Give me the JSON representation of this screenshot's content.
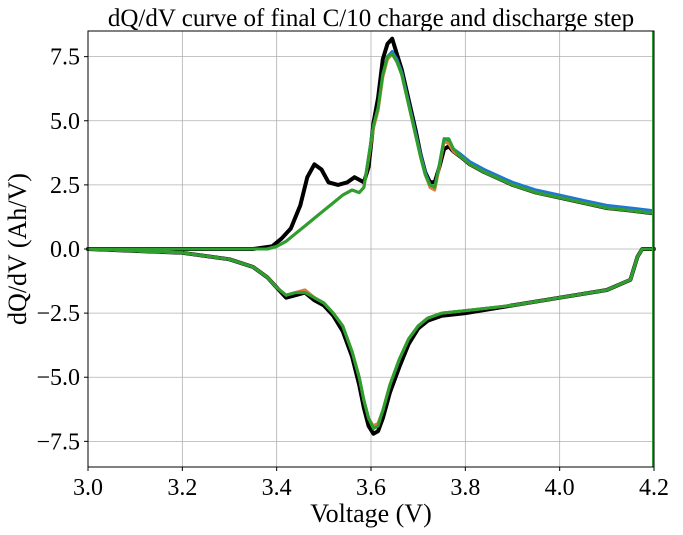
{
  "chart_data": {
    "type": "line",
    "title": "dQ/dV curve of final C/10 charge and discharge step",
    "xlabel": "Voltage (V)",
    "ylabel": "dQ/dV (Ah/V)",
    "xlim": [
      3.0,
      4.2
    ],
    "ylim": [
      -8.5,
      8.5
    ],
    "xticks": [
      3.0,
      3.2,
      3.4,
      3.6,
      3.8,
      4.0,
      4.2
    ],
    "xtick_labels": [
      "3.0",
      "3.2",
      "3.4",
      "3.6",
      "3.8",
      "4.0",
      "4.2"
    ],
    "yticks": [
      -7.5,
      -5.0,
      -2.5,
      0.0,
      2.5,
      5.0,
      7.5
    ],
    "ytick_labels": [
      "−7.5",
      "−5.0",
      "−2.5",
      "0.0",
      "2.5",
      "5.0",
      "7.5"
    ],
    "grid": true,
    "series": [
      {
        "color": "#000000",
        "charge": {
          "x": [
            3.0,
            3.35,
            3.39,
            3.41,
            3.43,
            3.45,
            3.465,
            3.48,
            3.495,
            3.51,
            3.53,
            3.55,
            3.565,
            3.575,
            3.585,
            3.595,
            3.605,
            3.615,
            3.625,
            3.635,
            3.645,
            3.655,
            3.665,
            3.675,
            3.685,
            3.695,
            3.705,
            3.715,
            3.725,
            3.735,
            3.745,
            3.755,
            3.765,
            3.775,
            3.79,
            3.81,
            3.84,
            3.9,
            3.95,
            4.0,
            4.05,
            4.1,
            4.15,
            4.195
          ],
          "y": [
            0.0,
            0.0,
            0.1,
            0.4,
            0.8,
            1.7,
            2.8,
            3.3,
            3.1,
            2.6,
            2.5,
            2.6,
            2.8,
            2.7,
            2.6,
            3.2,
            4.9,
            5.9,
            7.4,
            8.0,
            8.2,
            7.6,
            7.0,
            6.2,
            5.4,
            4.6,
            3.7,
            3.0,
            2.6,
            2.6,
            3.2,
            3.9,
            4.0,
            3.8,
            3.6,
            3.3,
            3.0,
            2.5,
            2.2,
            2.0,
            1.8,
            1.6,
            1.5,
            1.4
          ]
        },
        "discharge": {
          "x": [
            3.0,
            3.2,
            3.3,
            3.35,
            3.38,
            3.4,
            3.42,
            3.44,
            3.46,
            3.48,
            3.5,
            3.52,
            3.54,
            3.56,
            3.575,
            3.585,
            3.595,
            3.605,
            3.615,
            3.625,
            3.64,
            3.66,
            3.68,
            3.7,
            3.72,
            3.75,
            3.8,
            3.9,
            4.0,
            4.1,
            4.15,
            4.165,
            4.175,
            4.2
          ],
          "y": [
            0.0,
            -0.15,
            -0.4,
            -0.7,
            -1.1,
            -1.5,
            -1.9,
            -1.8,
            -1.7,
            -2.0,
            -2.2,
            -2.6,
            -3.2,
            -4.2,
            -5.3,
            -6.2,
            -6.9,
            -7.2,
            -7.1,
            -6.6,
            -5.6,
            -4.6,
            -3.7,
            -3.1,
            -2.8,
            -2.6,
            -2.5,
            -2.2,
            -1.9,
            -1.6,
            -1.2,
            -0.3,
            0.0,
            0.0
          ]
        }
      },
      {
        "color": "#1f77d4",
        "charge": {
          "x": [
            3.0,
            3.38,
            3.4,
            3.42,
            3.44,
            3.46,
            3.48,
            3.5,
            3.52,
            3.54,
            3.56,
            3.575,
            3.585,
            3.595,
            3.605,
            3.615,
            3.625,
            3.635,
            3.645,
            3.655,
            3.665,
            3.675,
            3.685,
            3.695,
            3.705,
            3.715,
            3.725,
            3.735,
            3.745,
            3.755,
            3.765,
            3.775,
            3.79,
            3.81,
            3.84,
            3.9,
            3.95,
            4.0,
            4.05,
            4.1,
            4.15,
            4.195
          ],
          "y": [
            0.0,
            0.0,
            0.1,
            0.3,
            0.6,
            0.9,
            1.2,
            1.5,
            1.8,
            2.1,
            2.3,
            2.2,
            2.4,
            3.6,
            4.8,
            5.5,
            6.8,
            7.5,
            7.7,
            7.4,
            6.9,
            6.1,
            5.3,
            4.5,
            3.7,
            3.0,
            2.5,
            2.4,
            3.3,
            4.3,
            4.2,
            3.9,
            3.7,
            3.4,
            3.1,
            2.6,
            2.3,
            2.1,
            1.9,
            1.7,
            1.6,
            1.5
          ]
        },
        "discharge": {
          "x": [
            3.0,
            3.2,
            3.3,
            3.35,
            3.38,
            3.4,
            3.42,
            3.44,
            3.46,
            3.48,
            3.5,
            3.52,
            3.54,
            3.56,
            3.575,
            3.585,
            3.595,
            3.605,
            3.615,
            3.625,
            3.64,
            3.66,
            3.68,
            3.7,
            3.72,
            3.75,
            3.8,
            3.9,
            4.0,
            4.1,
            4.15,
            4.165,
            4.175,
            4.2
          ],
          "y": [
            0.0,
            -0.15,
            -0.4,
            -0.7,
            -1.1,
            -1.5,
            -1.8,
            -1.7,
            -1.6,
            -1.9,
            -2.1,
            -2.5,
            -3.0,
            -4.0,
            -5.0,
            -5.9,
            -6.6,
            -6.9,
            -6.8,
            -6.3,
            -5.3,
            -4.3,
            -3.5,
            -3.0,
            -2.7,
            -2.5,
            -2.4,
            -2.2,
            -1.9,
            -1.6,
            -1.2,
            -0.3,
            0.0,
            0.0
          ]
        }
      },
      {
        "color": "#e07b39",
        "charge": {
          "x": [
            3.0,
            3.38,
            3.4,
            3.42,
            3.44,
            3.46,
            3.48,
            3.5,
            3.52,
            3.54,
            3.56,
            3.575,
            3.585,
            3.595,
            3.605,
            3.615,
            3.625,
            3.635,
            3.645,
            3.655,
            3.665,
            3.675,
            3.685,
            3.695,
            3.705,
            3.715,
            3.725,
            3.735,
            3.745,
            3.755,
            3.765,
            3.775,
            3.79,
            3.81,
            3.84,
            3.9,
            3.95,
            4.0,
            4.05,
            4.1,
            4.15,
            4.195
          ],
          "y": [
            0.0,
            0.0,
            0.1,
            0.3,
            0.6,
            0.9,
            1.2,
            1.5,
            1.8,
            2.1,
            2.3,
            2.2,
            2.4,
            3.5,
            4.7,
            5.4,
            6.7,
            7.4,
            7.6,
            7.3,
            6.8,
            6.0,
            5.2,
            4.4,
            3.6,
            2.9,
            2.4,
            2.3,
            3.2,
            4.2,
            4.1,
            3.8,
            3.6,
            3.3,
            3.0,
            2.5,
            2.2,
            2.0,
            1.8,
            1.6,
            1.5,
            1.4
          ]
        },
        "discharge": {
          "x": [
            3.0,
            3.2,
            3.3,
            3.35,
            3.38,
            3.4,
            3.42,
            3.44,
            3.46,
            3.48,
            3.5,
            3.52,
            3.54,
            3.56,
            3.575,
            3.585,
            3.595,
            3.605,
            3.615,
            3.625,
            3.64,
            3.66,
            3.68,
            3.7,
            3.72,
            3.75,
            3.8,
            3.9,
            4.0,
            4.1,
            4.15,
            4.165,
            4.175,
            4.2
          ],
          "y": [
            0.0,
            -0.15,
            -0.4,
            -0.7,
            -1.1,
            -1.5,
            -1.8,
            -1.7,
            -1.6,
            -1.9,
            -2.1,
            -2.5,
            -3.0,
            -4.0,
            -5.0,
            -5.9,
            -6.6,
            -6.9,
            -6.8,
            -6.3,
            -5.3,
            -4.3,
            -3.5,
            -3.0,
            -2.7,
            -2.5,
            -2.4,
            -2.2,
            -1.9,
            -1.6,
            -1.2,
            -0.3,
            0.0,
            0.0
          ]
        }
      },
      {
        "color": "#2ca02c",
        "charge": {
          "x": [
            3.0,
            3.38,
            3.4,
            3.42,
            3.44,
            3.46,
            3.48,
            3.5,
            3.52,
            3.54,
            3.56,
            3.575,
            3.585,
            3.595,
            3.605,
            3.615,
            3.625,
            3.635,
            3.645,
            3.655,
            3.665,
            3.675,
            3.685,
            3.695,
            3.705,
            3.715,
            3.725,
            3.735,
            3.745,
            3.755,
            3.765,
            3.775,
            3.79,
            3.81,
            3.84,
            3.9,
            3.95,
            4.0,
            4.05,
            4.1,
            4.15,
            4.195
          ],
          "y": [
            0.0,
            0.0,
            0.1,
            0.3,
            0.6,
            0.9,
            1.2,
            1.5,
            1.8,
            2.1,
            2.3,
            2.2,
            2.4,
            3.6,
            4.8,
            5.5,
            6.8,
            7.5,
            7.6,
            7.3,
            6.8,
            6.0,
            5.2,
            4.4,
            3.6,
            2.9,
            2.5,
            2.4,
            3.3,
            4.3,
            4.3,
            3.9,
            3.6,
            3.3,
            3.0,
            2.5,
            2.2,
            2.0,
            1.8,
            1.6,
            1.5,
            1.4
          ]
        },
        "discharge": {
          "x": [
            3.0,
            3.2,
            3.3,
            3.35,
            3.38,
            3.4,
            3.42,
            3.44,
            3.46,
            3.48,
            3.5,
            3.52,
            3.54,
            3.56,
            3.575,
            3.585,
            3.595,
            3.605,
            3.615,
            3.625,
            3.64,
            3.66,
            3.68,
            3.7,
            3.72,
            3.75,
            3.8,
            3.9,
            4.0,
            4.1,
            4.15,
            4.165,
            4.175,
            4.2
          ],
          "y": [
            0.0,
            -0.15,
            -0.4,
            -0.7,
            -1.1,
            -1.5,
            -1.8,
            -1.7,
            -1.7,
            -1.9,
            -2.1,
            -2.5,
            -3.0,
            -4.0,
            -5.0,
            -5.9,
            -6.6,
            -7.0,
            -6.9,
            -6.3,
            -5.3,
            -4.3,
            -3.5,
            -3.0,
            -2.7,
            -2.5,
            -2.4,
            -2.2,
            -1.9,
            -1.6,
            -1.2,
            -0.3,
            0.0,
            0.0
          ]
        }
      }
    ]
  }
}
